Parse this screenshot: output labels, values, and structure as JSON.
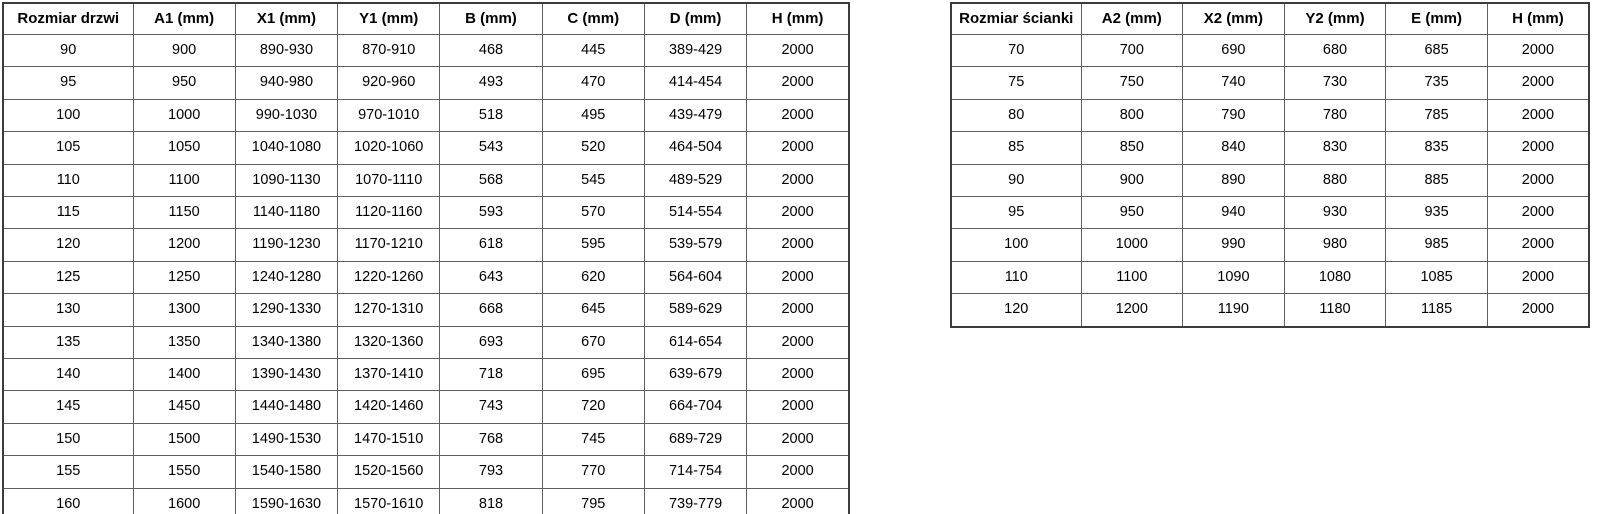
{
  "page": {
    "background": "#ffffff",
    "border_outer_color": "#3c3c3c",
    "border_inner_color": "#5f5f5f",
    "text_color": "#000000"
  },
  "tables": [
    {
      "name": "door-dimensions-table",
      "headers": [
        "Rozmiar drzwi",
        "A1 (mm)",
        "X1 (mm)",
        "Y1 (mm)",
        "B (mm)",
        "C (mm)",
        "D (mm)",
        "H (mm)"
      ],
      "rows": [
        [
          "90",
          "900",
          "890-930",
          "870-910",
          "468",
          "445",
          "389-429",
          "2000"
        ],
        [
          "95",
          "950",
          "940-980",
          "920-960",
          "493",
          "470",
          "414-454",
          "2000"
        ],
        [
          "100",
          "1000",
          "990-1030",
          "970-1010",
          "518",
          "495",
          "439-479",
          "2000"
        ],
        [
          "105",
          "1050",
          "1040-1080",
          "1020-1060",
          "543",
          "520",
          "464-504",
          "2000"
        ],
        [
          "110",
          "1100",
          "1090-1130",
          "1070-1110",
          "568",
          "545",
          "489-529",
          "2000"
        ],
        [
          "115",
          "1150",
          "1140-1180",
          "1120-1160",
          "593",
          "570",
          "514-554",
          "2000"
        ],
        [
          "120",
          "1200",
          "1190-1230",
          "1170-1210",
          "618",
          "595",
          "539-579",
          "2000"
        ],
        [
          "125",
          "1250",
          "1240-1280",
          "1220-1260",
          "643",
          "620",
          "564-604",
          "2000"
        ],
        [
          "130",
          "1300",
          "1290-1330",
          "1270-1310",
          "668",
          "645",
          "589-629",
          "2000"
        ],
        [
          "135",
          "1350",
          "1340-1380",
          "1320-1360",
          "693",
          "670",
          "614-654",
          "2000"
        ],
        [
          "140",
          "1400",
          "1390-1430",
          "1370-1410",
          "718",
          "695",
          "639-679",
          "2000"
        ],
        [
          "145",
          "1450",
          "1440-1480",
          "1420-1460",
          "743",
          "720",
          "664-704",
          "2000"
        ],
        [
          "150",
          "1500",
          "1490-1530",
          "1470-1510",
          "768",
          "745",
          "689-729",
          "2000"
        ],
        [
          "155",
          "1550",
          "1540-1580",
          "1520-1560",
          "793",
          "770",
          "714-754",
          "2000"
        ],
        [
          "160",
          "1600",
          "1590-1630",
          "1570-1610",
          "818",
          "795",
          "739-779",
          "2000"
        ]
      ]
    },
    {
      "name": "wall-dimensions-table",
      "headers": [
        "Rozmiar ścianki",
        "A2 (mm)",
        "X2 (mm)",
        "Y2 (mm)",
        "E (mm)",
        "H (mm)"
      ],
      "rows": [
        [
          "70",
          "700",
          "690",
          "680",
          "685",
          "2000"
        ],
        [
          "75",
          "750",
          "740",
          "730",
          "735",
          "2000"
        ],
        [
          "80",
          "800",
          "790",
          "780",
          "785",
          "2000"
        ],
        [
          "85",
          "850",
          "840",
          "830",
          "835",
          "2000"
        ],
        [
          "90",
          "900",
          "890",
          "880",
          "885",
          "2000"
        ],
        [
          "95",
          "950",
          "940",
          "930",
          "935",
          "2000"
        ],
        [
          "100",
          "1000",
          "990",
          "980",
          "985",
          "2000"
        ],
        [
          "110",
          "1100",
          "1090",
          "1080",
          "1085",
          "2000"
        ],
        [
          "120",
          "1200",
          "1190",
          "1180",
          "1185",
          "2000"
        ]
      ]
    }
  ],
  "chart_data": {
    "type": "table",
    "title": "",
    "tables": [
      {
        "columns": [
          "Rozmiar drzwi",
          "A1 (mm)",
          "X1 (mm)",
          "Y1 (mm)",
          "B (mm)",
          "C (mm)",
          "D (mm)",
          "H (mm)"
        ],
        "row_count": 15,
        "first_column_values": [
          90,
          95,
          100,
          105,
          110,
          115,
          120,
          125,
          130,
          135,
          140,
          145,
          150,
          155,
          160
        ]
      },
      {
        "columns": [
          "Rozmiar ścianki",
          "A2 (mm)",
          "X2 (mm)",
          "Y2 (mm)",
          "E (mm)",
          "H (mm)"
        ],
        "row_count": 9,
        "first_column_values": [
          70,
          75,
          80,
          85,
          90,
          95,
          100,
          110,
          120
        ]
      }
    ]
  }
}
